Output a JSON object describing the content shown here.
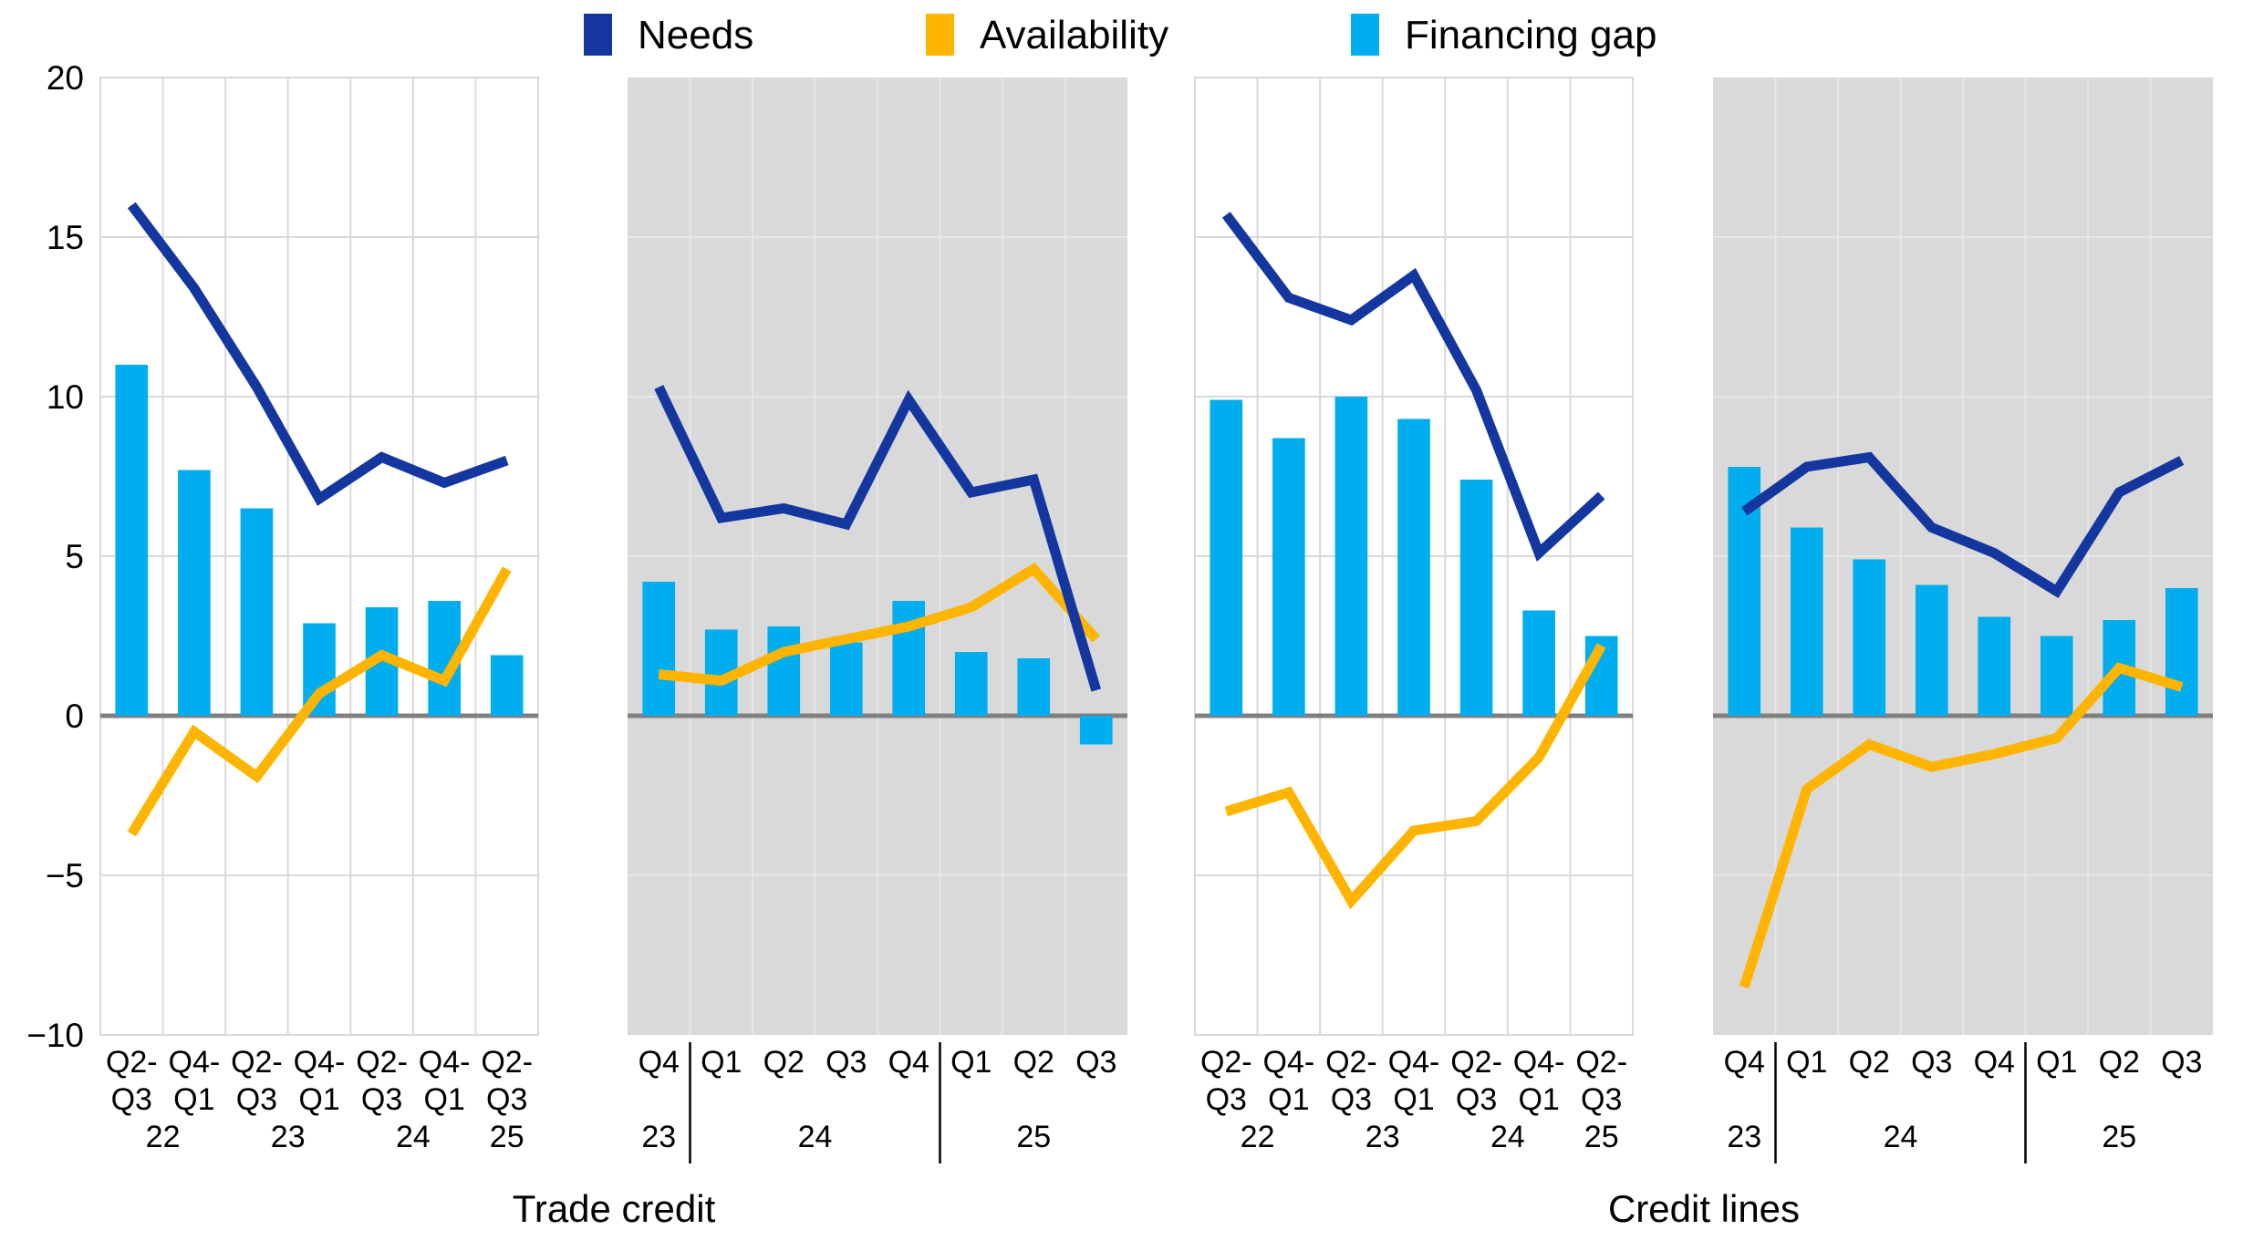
{
  "legend": [
    {
      "label": "Needs",
      "color": "#14379F"
    },
    {
      "label": "Availability",
      "color": "#FFB400"
    },
    {
      "label": "Financing gap",
      "color": "#00AEEF"
    }
  ],
  "colors": {
    "needs": "#14379F",
    "availability": "#FFB400",
    "financing_gap": "#00AEEF",
    "panel_gray": "#D9D9D9",
    "grid_on_white": "#D9D9D9",
    "grid_on_gray": "#E6E6E6",
    "zero_line": "#808080",
    "separator": "#000000"
  },
  "axis": {
    "ymax": 20,
    "ymin": -10,
    "tick_values": [
      20,
      15,
      10,
      5,
      0,
      -5,
      -10
    ],
    "tick_labels": [
      "20",
      "15",
      "10",
      "5",
      "0",
      "−5",
      "−10"
    ],
    "grid_values": [
      15,
      10,
      5,
      -5
    ]
  },
  "groups": [
    {
      "label": "Trade credit",
      "panels": [
        0,
        1
      ]
    },
    {
      "label": "Credit lines",
      "panels": [
        2,
        3
      ]
    }
  ],
  "chart_data": [
    {
      "id": "trade-credit-halfyearly",
      "group": "Trade credit",
      "type": "bar+line",
      "background": "white",
      "categories_top": [
        "Q2-",
        "Q4-",
        "Q2-",
        "Q4-",
        "Q2-",
        "Q4-",
        "Q2-"
      ],
      "categories_bottom": [
        "Q3",
        "Q1",
        "Q3",
        "Q1",
        "Q3",
        "Q1",
        "Q3"
      ],
      "year_labels": [
        {
          "text": "22",
          "slot": 1.5
        },
        {
          "text": "23",
          "slot": 3.5
        },
        {
          "text": "24",
          "slot": 5.5
        },
        {
          "text": "25",
          "slot": 7
        }
      ],
      "separators": [],
      "series": {
        "needs": [
          16.0,
          13.4,
          10.3,
          6.8,
          8.1,
          7.3,
          8.0
        ],
        "availability": [
          -3.7,
          -0.5,
          -1.9,
          0.7,
          1.9,
          1.1,
          4.6
        ],
        "financing_gap": [
          11.0,
          7.7,
          6.5,
          2.9,
          3.4,
          3.6,
          1.9
        ]
      }
    },
    {
      "id": "trade-credit-quarterly",
      "group": "Trade credit",
      "type": "bar+line",
      "background": "gray",
      "categories_top": [
        "Q4",
        "Q1",
        "Q2",
        "Q3",
        "Q4",
        "Q1",
        "Q2",
        "Q3"
      ],
      "year_labels": [
        {
          "text": "23",
          "slot": 1
        },
        {
          "text": "24",
          "slot": 3.5
        },
        {
          "text": "25",
          "slot": 7
        }
      ],
      "separators": [
        1,
        5
      ],
      "series": {
        "needs": [
          10.3,
          6.2,
          6.5,
          6.0,
          9.9,
          7.0,
          7.4,
          0.8
        ],
        "availability": [
          1.3,
          1.1,
          2.0,
          2.4,
          2.8,
          3.4,
          4.6,
          2.4
        ],
        "financing_gap": [
          4.2,
          2.7,
          2.8,
          2.3,
          3.6,
          2.0,
          1.8,
          -0.9
        ]
      }
    },
    {
      "id": "credit-lines-halfyearly",
      "group": "Credit lines",
      "type": "bar+line",
      "background": "white",
      "categories_top": [
        "Q2-",
        "Q4-",
        "Q2-",
        "Q4-",
        "Q2-",
        "Q4-",
        "Q2-"
      ],
      "categories_bottom": [
        "Q3",
        "Q1",
        "Q3",
        "Q1",
        "Q3",
        "Q1",
        "Q3"
      ],
      "year_labels": [
        {
          "text": "22",
          "slot": 1.5
        },
        {
          "text": "23",
          "slot": 3.5
        },
        {
          "text": "24",
          "slot": 5.5
        },
        {
          "text": "25",
          "slot": 7
        }
      ],
      "separators": [],
      "series": {
        "needs": [
          15.7,
          13.1,
          12.4,
          13.8,
          10.2,
          5.1,
          6.9
        ],
        "availability": [
          -3.0,
          -2.4,
          -5.8,
          -3.6,
          -3.3,
          -1.3,
          2.2
        ],
        "financing_gap": [
          9.9,
          8.7,
          10.0,
          9.3,
          7.4,
          3.3,
          2.5
        ]
      }
    },
    {
      "id": "credit-lines-quarterly",
      "group": "Credit lines",
      "type": "bar+line",
      "background": "gray",
      "categories_top": [
        "Q4",
        "Q1",
        "Q2",
        "Q3",
        "Q4",
        "Q1",
        "Q2",
        "Q3"
      ],
      "year_labels": [
        {
          "text": "23",
          "slot": 1
        },
        {
          "text": "24",
          "slot": 3.5
        },
        {
          "text": "25",
          "slot": 7
        }
      ],
      "separators": [
        1,
        5
      ],
      "series": {
        "needs": [
          6.4,
          7.8,
          8.1,
          5.9,
          5.1,
          3.9,
          7.0,
          8.0
        ],
        "availability": [
          -8.5,
          -2.3,
          -0.9,
          -1.6,
          -1.2,
          -0.7,
          1.5,
          0.9
        ],
        "financing_gap": [
          7.8,
          5.9,
          4.9,
          4.1,
          3.1,
          2.5,
          3.0,
          4.0
        ]
      }
    }
  ]
}
